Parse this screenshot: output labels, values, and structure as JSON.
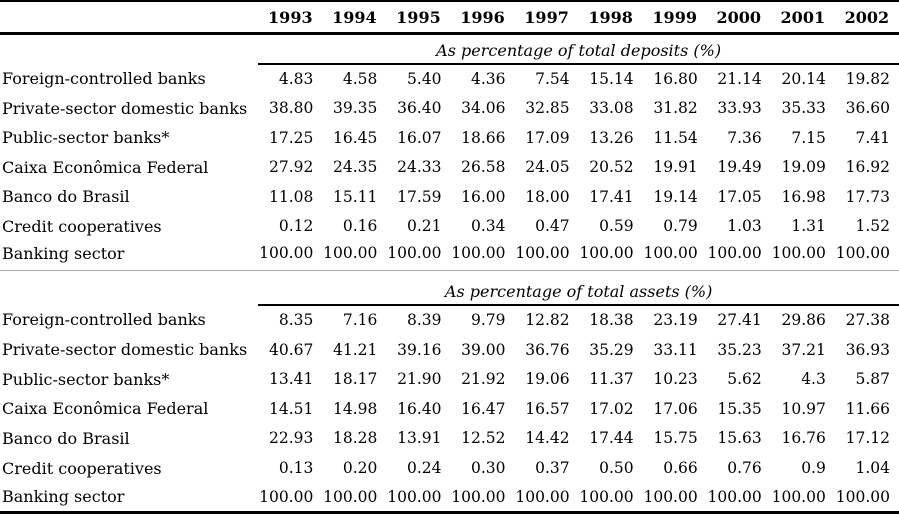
{
  "table": {
    "years": [
      "1993",
      "1994",
      "1995",
      "1996",
      "1997",
      "1998",
      "1999",
      "2000",
      "2001",
      "2002"
    ],
    "sections": [
      {
        "title": "As percentage of total deposits (%)",
        "rows": [
          {
            "label": "Foreign-controlled banks",
            "values": [
              "4.83",
              "4.58",
              "5.40",
              "4.36",
              "7.54",
              "15.14",
              "16.80",
              "21.14",
              "20.14",
              "19.82"
            ]
          },
          {
            "label": "Private-sector domestic banks",
            "values": [
              "38.80",
              "39.35",
              "36.40",
              "34.06",
              "32.85",
              "33.08",
              "31.82",
              "33.93",
              "35.33",
              "36.60"
            ]
          },
          {
            "label": "Public-sector banks*",
            "values": [
              "17.25",
              "16.45",
              "16.07",
              "18.66",
              "17.09",
              "13.26",
              "11.54",
              "7.36",
              "7.15",
              "7.41"
            ]
          },
          {
            "label": "Caixa Econômica Federal",
            "values": [
              "27.92",
              "24.35",
              "24.33",
              "26.58",
              "24.05",
              "20.52",
              "19.91",
              "19.49",
              "19.09",
              "16.92"
            ]
          },
          {
            "label": "Banco do Brasil",
            "values": [
              "11.08",
              "15.11",
              "17.59",
              "16.00",
              "18.00",
              "17.41",
              "19.14",
              "17.05",
              "16.98",
              "17.73"
            ]
          },
          {
            "label": "Credit cooperatives",
            "values": [
              "0.12",
              "0.16",
              "0.21",
              "0.34",
              "0.47",
              "0.59",
              "0.79",
              "1.03",
              "1.31",
              "1.52"
            ]
          },
          {
            "label": "Banking sector",
            "values": [
              "100.00",
              "100.00",
              "100.00",
              "100.00",
              "100.00",
              "100.00",
              "100.00",
              "100.00",
              "100.00",
              "100.00"
            ]
          }
        ]
      },
      {
        "title": "As percentage of total assets (%)",
        "rows": [
          {
            "label": "Foreign-controlled banks",
            "values": [
              "8.35",
              "7.16",
              "8.39",
              "9.79",
              "12.82",
              "18.38",
              "23.19",
              "27.41",
              "29.86",
              "27.38"
            ]
          },
          {
            "label": "Private-sector domestic banks",
            "values": [
              "40.67",
              "41.21",
              "39.16",
              "39.00",
              "36.76",
              "35.29",
              "33.11",
              "35.23",
              "37.21",
              "36.93"
            ]
          },
          {
            "label": "Public-sector banks*",
            "values": [
              "13.41",
              "18.17",
              "21.90",
              "21.92",
              "19.06",
              "11.37",
              "10.23",
              "5.62",
              "4.3",
              "5.87"
            ]
          },
          {
            "label": "Caixa Econômica Federal",
            "values": [
              "14.51",
              "14.98",
              "16.40",
              "16.47",
              "16.57",
              "17.02",
              "17.06",
              "15.35",
              "10.97",
              "11.66"
            ]
          },
          {
            "label": "Banco do Brasil",
            "values": [
              "22.93",
              "18.28",
              "13.91",
              "12.52",
              "14.42",
              "17.44",
              "15.75",
              "15.63",
              "16.76",
              "17.12"
            ]
          },
          {
            "label": "Credit cooperatives",
            "values": [
              "0.13",
              "0.20",
              "0.24",
              "0.30",
              "0.37",
              "0.50",
              "0.66",
              "0.76",
              "0.9",
              "1.04"
            ]
          },
          {
            "label": "Banking sector",
            "values": [
              "100.00",
              "100.00",
              "100.00",
              "100.00",
              "100.00",
              "100.00",
              "100.00",
              "100.00",
              "100.00",
              "100.00"
            ]
          }
        ]
      }
    ],
    "colors": {
      "text": "#000000",
      "rule": "#000000",
      "section_divider": "#ababab",
      "background": "#ffffff"
    }
  }
}
